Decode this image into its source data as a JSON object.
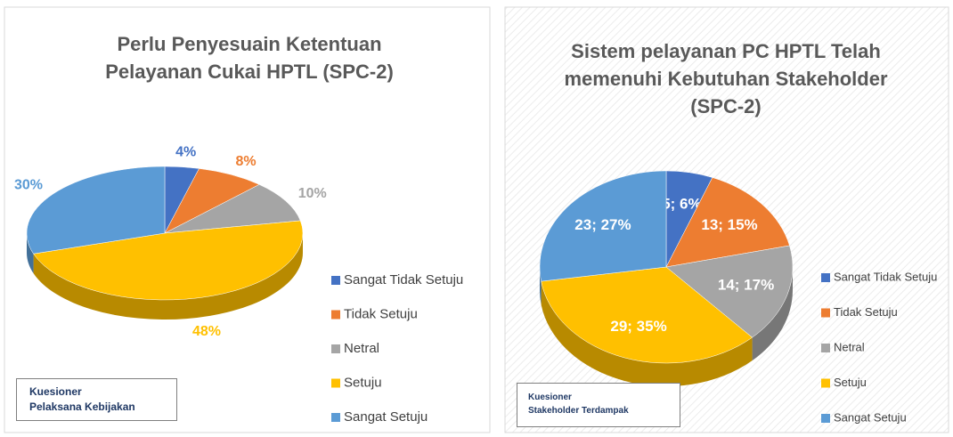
{
  "chart_data": [
    {
      "type": "pie3d",
      "title": "Perlu Penyesuain Ketentuan Pelayanan Cukai HPTL (SPC-2)",
      "categories": [
        "Sangat Tidak Setuju",
        "Tidak Setuju",
        "Netral",
        "Setuju",
        "Sangat Setuju"
      ],
      "values": [
        4,
        8,
        10,
        48,
        30
      ],
      "value_labels": [
        "4%",
        "8%",
        "10%",
        "48%",
        "30%"
      ],
      "colors": [
        "#4472c4",
        "#ed7d31",
        "#a5a5a5",
        "#ffc000",
        "#5b9bd5"
      ],
      "label_position": "outside",
      "annotation": "Kuesioner\nPelaksana Kebijakan"
    },
    {
      "type": "pie3d",
      "title": "Sistem pelayanan PC HPTL Telah memenuhi Kebutuhan Stakeholder (SPC-2)",
      "categories": [
        "Sangat Tidak Setuju",
        "Tidak Setuju",
        "Netral",
        "Setuju",
        "Sangat Setuju"
      ],
      "values": [
        5,
        13,
        14,
        29,
        23
      ],
      "value_labels": [
        "5; 6%",
        "13; 15%",
        "14; 17%",
        "29; 35%",
        "23; 27%"
      ],
      "colors": [
        "#4472c4",
        "#ed7d31",
        "#a5a5a5",
        "#ffc000",
        "#5b9bd5"
      ],
      "label_position": "inside",
      "annotation": "Kuesioner\nStakeholder Terdampak"
    }
  ]
}
